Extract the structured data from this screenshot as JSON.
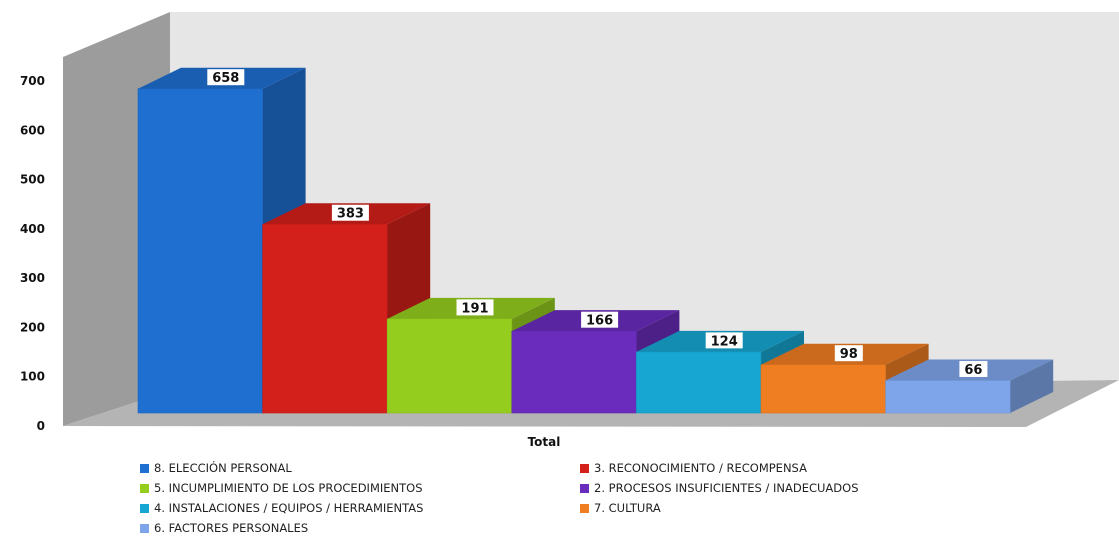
{
  "chart_data": {
    "type": "bar",
    "three_d": true,
    "categories": [
      "Total"
    ],
    "xlabel": "",
    "ylabel": "",
    "ylim": [
      0,
      700
    ],
    "yticks": [
      0,
      100,
      200,
      300,
      400,
      500,
      600,
      700
    ],
    "grid": false,
    "legend_position": "bottom",
    "series": [
      {
        "name": "8. ELECCIÓN PERSONAL",
        "values": [
          658
        ],
        "color": "#1f6fd1"
      },
      {
        "name": "3. RECONOCIMIENTO / RECOMPENSA",
        "values": [
          383
        ],
        "color": "#d4201a"
      },
      {
        "name": "5. INCUMPLIMIENTO DE LOS PROCEDIMIENTOS",
        "values": [
          191
        ],
        "color": "#94cd1e"
      },
      {
        "name": "2. PROCESOS INSUFICIENTES / INADECUADOS",
        "values": [
          166
        ],
        "color": "#6a2cbc"
      },
      {
        "name": "4. INSTALACIONES / EQUIPOS / HERRAMIENTAS",
        "values": [
          124
        ],
        "color": "#16a6d1"
      },
      {
        "name": "7. CULTURA",
        "values": [
          98
        ],
        "color": "#ef7d22"
      },
      {
        "name": "6. FACTORES PERSONALES",
        "values": [
          66
        ],
        "color": "#7ea5ea"
      }
    ]
  }
}
